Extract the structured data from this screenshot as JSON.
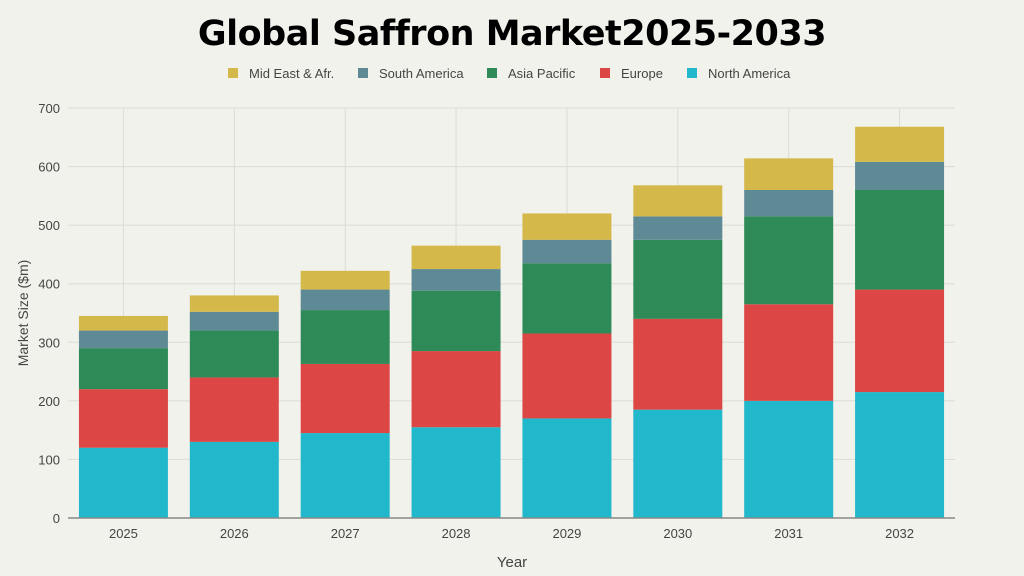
{
  "chart_data": {
    "type": "bar",
    "stacked": true,
    "title": "Global Saffron Market2025-2033",
    "xlabel": "Year",
    "ylabel": "Market Size ($m)",
    "ylim": [
      0,
      700
    ],
    "yticks": [
      0,
      100,
      200,
      300,
      400,
      500,
      600,
      700
    ],
    "grid": true,
    "legend_position": "top",
    "categories": [
      "2025",
      "2026",
      "2027",
      "2028",
      "2029",
      "2030",
      "2031",
      "2032"
    ],
    "series": [
      {
        "name": "North America",
        "color": "#22b8cc",
        "values": [
          120,
          130,
          145,
          155,
          170,
          185,
          200,
          215
        ]
      },
      {
        "name": "Europe",
        "color": "#dc4645",
        "values": [
          100,
          110,
          118,
          130,
          145,
          155,
          165,
          175
        ]
      },
      {
        "name": "Asia Pacific",
        "color": "#2e8b57",
        "values": [
          70,
          80,
          92,
          103,
          120,
          135,
          150,
          170
        ]
      },
      {
        "name": "South America",
        "color": "#5e8a95",
        "values": [
          30,
          32,
          35,
          37,
          40,
          40,
          45,
          48
        ]
      },
      {
        "name": "Mid East & Afr.",
        "color": "#d4b84a",
        "values": [
          25,
          28,
          32,
          40,
          45,
          53,
          54,
          60
        ]
      }
    ],
    "legend_order": [
      "Mid East & Afr.",
      "South America",
      "Asia Pacific",
      "Europe",
      "North America"
    ]
  }
}
